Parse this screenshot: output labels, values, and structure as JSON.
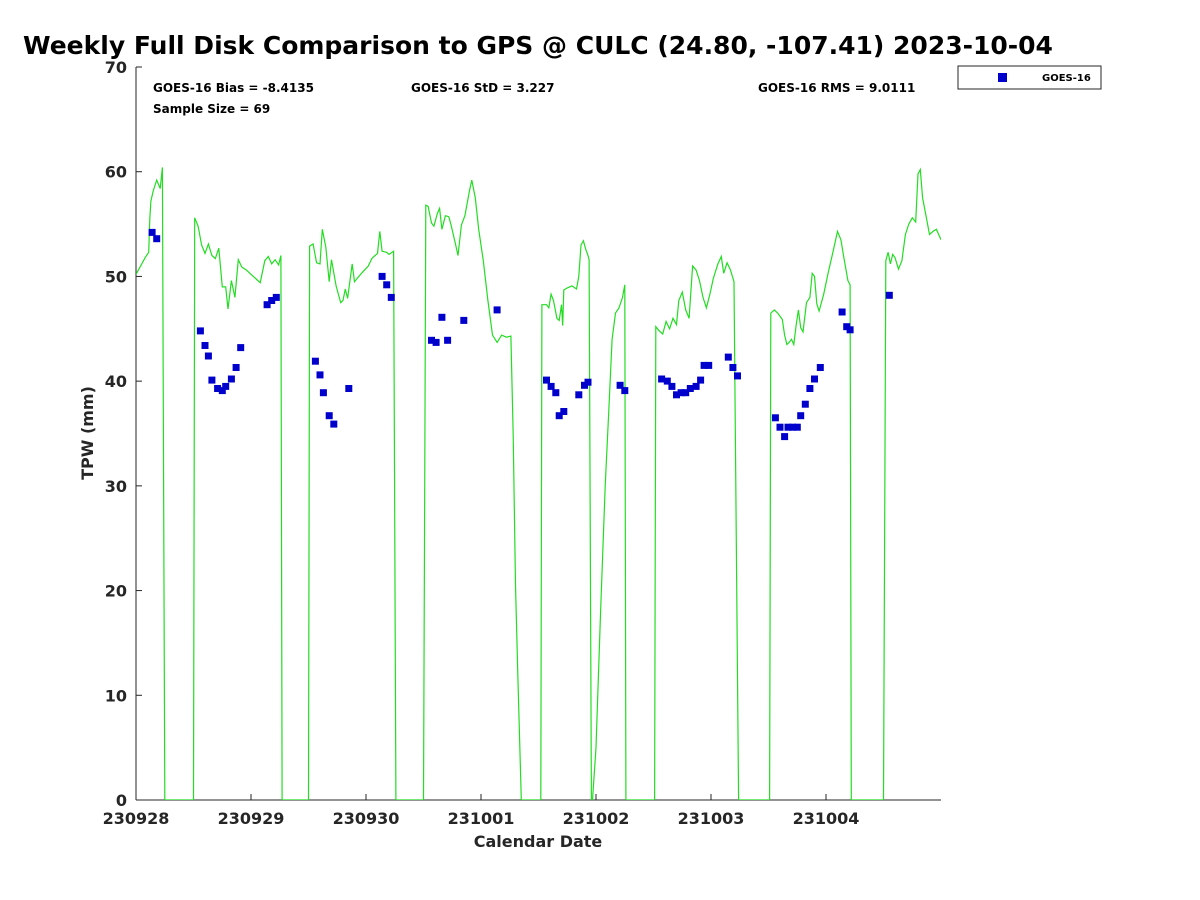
{
  "chart_data": {
    "type": "scatter",
    "title": "Weekly Full Disk Comparison to GPS @ CULC (24.80, -107.41) 2023-10-04",
    "xlabel": "Calendar Date",
    "ylabel": "TPW (mm)",
    "xlim": [
      0,
      7
    ],
    "ylim": [
      0,
      70
    ],
    "xticks": [
      {
        "pos": 0,
        "label": "230928"
      },
      {
        "pos": 1,
        "label": "230929"
      },
      {
        "pos": 2,
        "label": "230930"
      },
      {
        "pos": 3,
        "label": "231001"
      },
      {
        "pos": 4,
        "label": "231002"
      },
      {
        "pos": 5,
        "label": "231003"
      },
      {
        "pos": 6,
        "label": "231004"
      }
    ],
    "yticks": [
      0,
      10,
      20,
      30,
      40,
      50,
      60,
      70
    ],
    "grid": false,
    "legend_placement": "outside top-right",
    "stats": {
      "bias": "GOES-16 Bias = -8.4135",
      "std": "GOES-16 StD = 3.227",
      "rms": "GOES-16 RMS = 9.0111",
      "sample": "Sample Size = 69"
    },
    "series": [
      {
        "name": "GOES-16",
        "kind": "scatter",
        "color": "#0000cc",
        "marker": "square",
        "points": [
          [
            0.14,
            54.2
          ],
          [
            0.18,
            53.6
          ],
          [
            0.56,
            44.8
          ],
          [
            0.6,
            43.4
          ],
          [
            0.63,
            42.4
          ],
          [
            0.66,
            40.1
          ],
          [
            0.71,
            39.3
          ],
          [
            0.75,
            39.1
          ],
          [
            0.78,
            39.5
          ],
          [
            0.83,
            40.2
          ],
          [
            0.87,
            41.3
          ],
          [
            0.91,
            43.2
          ],
          [
            1.14,
            47.3
          ],
          [
            1.18,
            47.7
          ],
          [
            1.22,
            48.0
          ],
          [
            1.56,
            41.9
          ],
          [
            1.6,
            40.6
          ],
          [
            1.63,
            38.9
          ],
          [
            1.68,
            36.7
          ],
          [
            1.72,
            35.9
          ],
          [
            1.85,
            39.3
          ],
          [
            2.14,
            50.0
          ],
          [
            2.18,
            49.2
          ],
          [
            2.22,
            48.0
          ],
          [
            2.57,
            43.9
          ],
          [
            2.61,
            43.7
          ],
          [
            2.66,
            46.1
          ],
          [
            2.71,
            43.9
          ],
          [
            2.85,
            45.8
          ],
          [
            3.14,
            46.8
          ],
          [
            3.57,
            40.1
          ],
          [
            3.61,
            39.5
          ],
          [
            3.65,
            38.9
          ],
          [
            3.68,
            36.7
          ],
          [
            3.72,
            37.1
          ],
          [
            3.85,
            38.7
          ],
          [
            3.9,
            39.6
          ],
          [
            3.93,
            39.9
          ],
          [
            4.21,
            39.6
          ],
          [
            4.25,
            39.1
          ],
          [
            4.57,
            40.2
          ],
          [
            4.62,
            40.0
          ],
          [
            4.66,
            39.5
          ],
          [
            4.7,
            38.7
          ],
          [
            4.74,
            38.9
          ],
          [
            4.78,
            38.9
          ],
          [
            4.82,
            39.3
          ],
          [
            4.87,
            39.5
          ],
          [
            4.91,
            40.1
          ],
          [
            4.94,
            41.5
          ],
          [
            4.98,
            41.5
          ],
          [
            5.15,
            42.3
          ],
          [
            5.19,
            41.3
          ],
          [
            5.23,
            40.5
          ],
          [
            5.56,
            36.5
          ],
          [
            5.6,
            35.6
          ],
          [
            5.64,
            34.7
          ],
          [
            5.67,
            35.6
          ],
          [
            5.71,
            35.6
          ],
          [
            5.75,
            35.6
          ],
          [
            5.78,
            36.7
          ],
          [
            5.82,
            37.8
          ],
          [
            5.86,
            39.3
          ],
          [
            5.9,
            40.2
          ],
          [
            5.95,
            41.3
          ],
          [
            6.14,
            46.6
          ],
          [
            6.18,
            45.2
          ],
          [
            6.21,
            44.9
          ],
          [
            6.55,
            48.2
          ]
        ]
      },
      {
        "kind": "line",
        "color": "#22dd22",
        "points": [
          [
            0.0,
            50.2
          ],
          [
            0.04,
            51.0
          ],
          [
            0.08,
            51.8
          ],
          [
            0.11,
            52.3
          ],
          [
            0.12,
            55.5
          ],
          [
            0.13,
            57.2
          ],
          [
            0.15,
            58.2
          ],
          [
            0.18,
            59.2
          ],
          [
            0.21,
            58.4
          ],
          [
            0.23,
            60.4
          ],
          [
            0.25,
            0
          ],
          [
            0.5,
            0
          ],
          [
            0.51,
            55.6
          ],
          [
            0.54,
            54.8
          ],
          [
            0.57,
            53.0
          ],
          [
            0.6,
            52.2
          ],
          [
            0.63,
            53.1
          ],
          [
            0.66,
            52.0
          ],
          [
            0.69,
            51.7
          ],
          [
            0.72,
            52.7
          ],
          [
            0.75,
            49.0
          ],
          [
            0.78,
            49.0
          ],
          [
            0.8,
            46.9
          ],
          [
            0.83,
            49.6
          ],
          [
            0.86,
            48.0
          ],
          [
            0.89,
            51.6
          ],
          [
            0.92,
            50.9
          ],
          [
            0.96,
            50.6
          ],
          [
            1.0,
            50.2
          ],
          [
            1.04,
            49.8
          ],
          [
            1.08,
            49.4
          ],
          [
            1.12,
            51.5
          ],
          [
            1.15,
            51.9
          ],
          [
            1.18,
            51.2
          ],
          [
            1.21,
            51.6
          ],
          [
            1.24,
            51.1
          ],
          [
            1.26,
            52.0
          ],
          [
            1.27,
            0
          ],
          [
            1.5,
            0
          ],
          [
            1.51,
            52.9
          ],
          [
            1.54,
            53.1
          ],
          [
            1.57,
            51.3
          ],
          [
            1.6,
            51.2
          ],
          [
            1.62,
            54.5
          ],
          [
            1.65,
            52.8
          ],
          [
            1.68,
            49.5
          ],
          [
            1.7,
            51.6
          ],
          [
            1.74,
            49.1
          ],
          [
            1.78,
            47.5
          ],
          [
            1.8,
            47.7
          ],
          [
            1.82,
            48.8
          ],
          [
            1.84,
            47.9
          ],
          [
            1.88,
            51.2
          ],
          [
            1.9,
            49.5
          ],
          [
            1.93,
            49.9
          ],
          [
            1.97,
            50.4
          ],
          [
            2.02,
            51.0
          ],
          [
            2.05,
            51.7
          ],
          [
            2.07,
            51.9
          ],
          [
            2.1,
            52.2
          ],
          [
            2.12,
            54.3
          ],
          [
            2.14,
            52.4
          ],
          [
            2.18,
            52.3
          ],
          [
            2.2,
            52.1
          ],
          [
            2.24,
            52.4
          ],
          [
            2.26,
            0
          ],
          [
            2.5,
            0
          ],
          [
            2.52,
            56.8
          ],
          [
            2.54,
            56.7
          ],
          [
            2.57,
            55.1
          ],
          [
            2.59,
            54.8
          ],
          [
            2.62,
            56.0
          ],
          [
            2.64,
            56.5
          ],
          [
            2.66,
            54.5
          ],
          [
            2.69,
            55.8
          ],
          [
            2.72,
            55.7
          ],
          [
            2.74,
            54.9
          ],
          [
            2.78,
            53.0
          ],
          [
            2.8,
            52.0
          ],
          [
            2.83,
            54.9
          ],
          [
            2.86,
            55.8
          ],
          [
            2.9,
            58.2
          ],
          [
            2.92,
            59.2
          ],
          [
            2.95,
            57.5
          ],
          [
            2.98,
            54.5
          ],
          [
            3.02,
            51.5
          ],
          [
            3.06,
            47.7
          ],
          [
            3.1,
            44.4
          ],
          [
            3.14,
            43.7
          ],
          [
            3.18,
            44.4
          ],
          [
            3.22,
            44.2
          ],
          [
            3.26,
            44.3
          ],
          [
            3.28,
            34.8
          ],
          [
            3.3,
            20.5
          ],
          [
            3.32,
            12.0
          ],
          [
            3.35,
            0
          ],
          [
            3.52,
            0
          ],
          [
            3.53,
            47.3
          ],
          [
            3.57,
            47.3
          ],
          [
            3.59,
            47.0
          ],
          [
            3.61,
            48.3
          ],
          [
            3.63,
            47.7
          ],
          [
            3.66,
            46.0
          ],
          [
            3.68,
            45.8
          ],
          [
            3.7,
            47.3
          ],
          [
            3.71,
            45.3
          ],
          [
            3.72,
            48.7
          ],
          [
            3.75,
            48.9
          ],
          [
            3.79,
            49.1
          ],
          [
            3.83,
            48.8
          ],
          [
            3.85,
            50.0
          ],
          [
            3.87,
            53.0
          ],
          [
            3.89,
            53.4
          ],
          [
            3.91,
            52.6
          ],
          [
            3.93,
            52.0
          ],
          [
            3.94,
            51.6
          ],
          [
            3.96,
            0
          ],
          [
            3.97,
            0
          ],
          [
            4.0,
            5.0
          ],
          [
            4.04,
            18.0
          ],
          [
            4.08,
            30.0
          ],
          [
            4.11,
            37.0
          ],
          [
            4.14,
            44.0
          ],
          [
            4.17,
            46.5
          ],
          [
            4.2,
            47.0
          ],
          [
            4.23,
            48.0
          ],
          [
            4.25,
            49.2
          ],
          [
            4.26,
            0
          ],
          [
            4.51,
            0
          ],
          [
            4.52,
            45.2
          ],
          [
            4.55,
            44.8
          ],
          [
            4.58,
            44.5
          ],
          [
            4.61,
            45.7
          ],
          [
            4.64,
            45.0
          ],
          [
            4.67,
            46.0
          ],
          [
            4.7,
            45.4
          ],
          [
            4.72,
            47.7
          ],
          [
            4.75,
            48.5
          ],
          [
            4.78,
            46.8
          ],
          [
            4.81,
            46.0
          ],
          [
            4.84,
            51.0
          ],
          [
            4.87,
            50.6
          ],
          [
            4.9,
            49.6
          ],
          [
            4.93,
            48.0
          ],
          [
            4.96,
            47.0
          ],
          [
            4.99,
            48.3
          ],
          [
            5.02,
            49.8
          ],
          [
            5.06,
            51.2
          ],
          [
            5.09,
            51.9
          ],
          [
            5.11,
            50.3
          ],
          [
            5.14,
            51.3
          ],
          [
            5.17,
            50.6
          ],
          [
            5.2,
            49.5
          ],
          [
            5.24,
            0
          ],
          [
            5.51,
            0
          ],
          [
            5.52,
            46.5
          ],
          [
            5.55,
            46.8
          ],
          [
            5.58,
            46.5
          ],
          [
            5.62,
            45.9
          ],
          [
            5.64,
            44.4
          ],
          [
            5.66,
            43.5
          ],
          [
            5.68,
            43.7
          ],
          [
            5.7,
            44.0
          ],
          [
            5.72,
            43.5
          ],
          [
            5.74,
            45.3
          ],
          [
            5.76,
            46.8
          ],
          [
            5.78,
            45.1
          ],
          [
            5.8,
            44.7
          ],
          [
            5.83,
            47.5
          ],
          [
            5.86,
            48.0
          ],
          [
            5.88,
            50.3
          ],
          [
            5.9,
            50.0
          ],
          [
            5.92,
            47.4
          ],
          [
            5.94,
            46.7
          ],
          [
            5.98,
            48.3
          ],
          [
            6.02,
            50.4
          ],
          [
            6.06,
            52.3
          ],
          [
            6.1,
            54.3
          ],
          [
            6.13,
            53.5
          ],
          [
            6.16,
            51.5
          ],
          [
            6.19,
            49.6
          ],
          [
            6.21,
            49.2
          ],
          [
            6.22,
            0
          ],
          [
            6.5,
            0
          ],
          [
            6.52,
            51.5
          ],
          [
            6.54,
            52.3
          ],
          [
            6.56,
            51.2
          ],
          [
            6.58,
            52.1
          ],
          [
            6.6,
            51.8
          ],
          [
            6.63,
            50.7
          ],
          [
            6.66,
            51.5
          ],
          [
            6.69,
            54.0
          ],
          [
            6.72,
            55.0
          ],
          [
            6.75,
            55.6
          ],
          [
            6.78,
            55.2
          ],
          [
            6.8,
            59.8
          ],
          [
            6.82,
            60.2
          ],
          [
            6.84,
            57.5
          ],
          [
            6.87,
            55.8
          ],
          [
            6.9,
            54.0
          ],
          [
            6.93,
            54.3
          ],
          [
            6.96,
            54.5
          ],
          [
            7.0,
            53.5
          ]
        ]
      }
    ]
  }
}
